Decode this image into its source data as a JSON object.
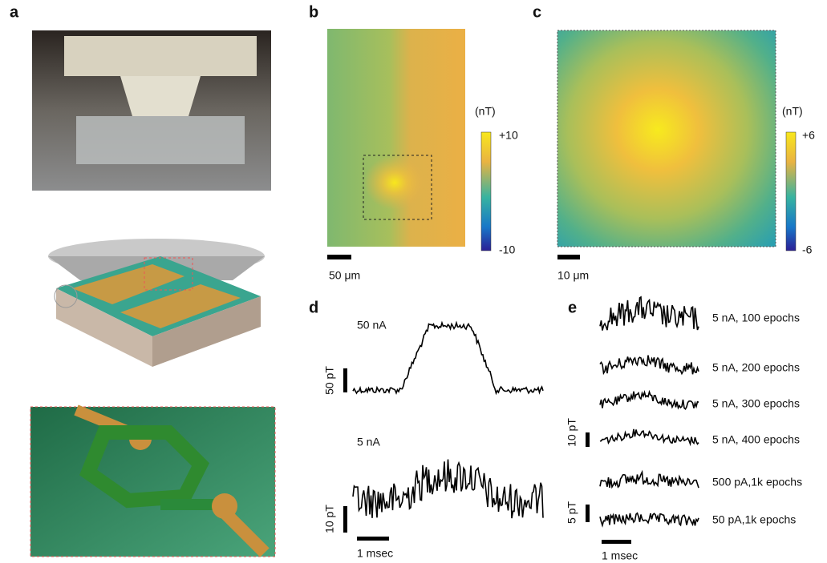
{
  "panels": {
    "a": {
      "label": "a"
    },
    "b": {
      "label": "b",
      "colorbar_unit": "(nT)",
      "colorbar_max": "+10",
      "colorbar_min": "-10",
      "scale_bar": "50 μm"
    },
    "c": {
      "label": "c",
      "colorbar_unit": "(nT)",
      "colorbar_max": "+6",
      "colorbar_min": "-6",
      "scale_bar": "10 μm"
    },
    "d": {
      "label": "d",
      "traces": [
        "50 nA",
        "5 nA"
      ],
      "scale_y": [
        "50 pT",
        "10 pT"
      ],
      "scale_x": "1 msec"
    },
    "e": {
      "label": "e",
      "traces": [
        "5 nA, 100 epochs",
        "5 nA, 200 epochs",
        "5 nA, 300 epochs",
        "5 nA, 400 epochs",
        "500 pA,1k epochs",
        "50 pA,1k epochs"
      ],
      "scale_y": [
        "10 pT",
        "5 pT"
      ],
      "scale_x": "1 msec"
    }
  }
}
